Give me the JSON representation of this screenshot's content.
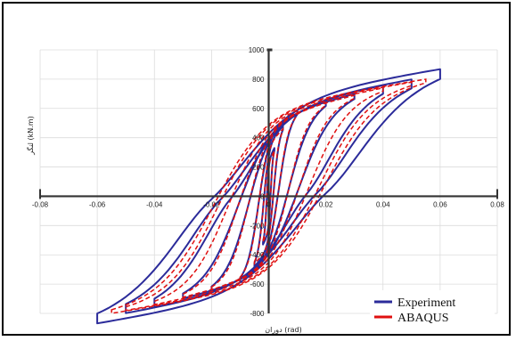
{
  "chart_data": {
    "type": "line",
    "title": "",
    "xlabel": "دوران (rad)",
    "ylabel": "لنگر (kN.m)",
    "xlim": [
      -0.08,
      0.08
    ],
    "ylim": [
      -800,
      1000
    ],
    "x_ticks": [
      "-0.08",
      "-0.06",
      "-0.04",
      "-0.02",
      "0",
      "0.02",
      "0.04",
      "0.06",
      "0.08"
    ],
    "y_ticks": [
      "1000",
      "800",
      "600",
      "400",
      "200",
      "0",
      "-200",
      "-400",
      "-600",
      "-800"
    ],
    "grid": true,
    "legend_position": "bottom-right",
    "colors": {
      "Experiment": "#2b2b9a",
      "ABAQUS": "#e01010"
    },
    "series": [
      {
        "name": "Experiment",
        "amplitudes": [
          0.002,
          0.005,
          0.01,
          0.02,
          0.03,
          0.04,
          0.05,
          0.06
        ],
        "peak_moment": [
          330,
          480,
          590,
          650,
          700,
          760,
          800,
          870
        ]
      },
      {
        "name": "ABAQUS",
        "amplitudes": [
          0.002,
          0.005,
          0.01,
          0.02,
          0.03,
          0.04,
          0.05,
          0.055
        ],
        "peak_moment": [
          310,
          460,
          570,
          640,
          690,
          740,
          780,
          800
        ]
      }
    ]
  }
}
